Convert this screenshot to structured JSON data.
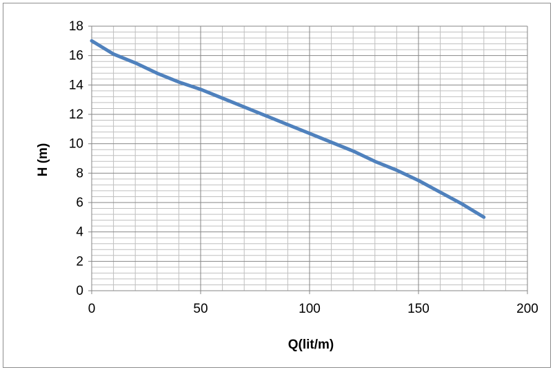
{
  "chart_data": {
    "type": "line",
    "title": "",
    "xlabel": "Q(lit/m)",
    "ylabel": "H (m)",
    "xlim": [
      0,
      200
    ],
    "ylim": [
      0,
      18
    ],
    "x_ticks": [
      0,
      50,
      100,
      150,
      200
    ],
    "y_ticks": [
      0,
      2,
      4,
      6,
      8,
      10,
      12,
      14,
      16,
      18
    ],
    "x_tick_labels": [
      "0",
      "50",
      "100",
      "150",
      "200"
    ],
    "y_tick_labels": [
      "0",
      "2",
      "4",
      "6",
      "8",
      "10",
      "12",
      "14",
      "16",
      "18"
    ],
    "grid": true,
    "legend": "none",
    "series": [
      {
        "color": "#4f81bd",
        "x": [
          0,
          10,
          20,
          30,
          40,
          50,
          60,
          70,
          80,
          90,
          100,
          110,
          120,
          130,
          140,
          150,
          160,
          170,
          180
        ],
        "y": [
          17.0,
          16.1,
          15.5,
          14.8,
          14.2,
          13.7,
          13.1,
          12.5,
          11.9,
          11.3,
          10.7,
          10.1,
          9.5,
          8.8,
          8.2,
          7.5,
          6.7,
          5.9,
          5.0
        ]
      }
    ]
  }
}
